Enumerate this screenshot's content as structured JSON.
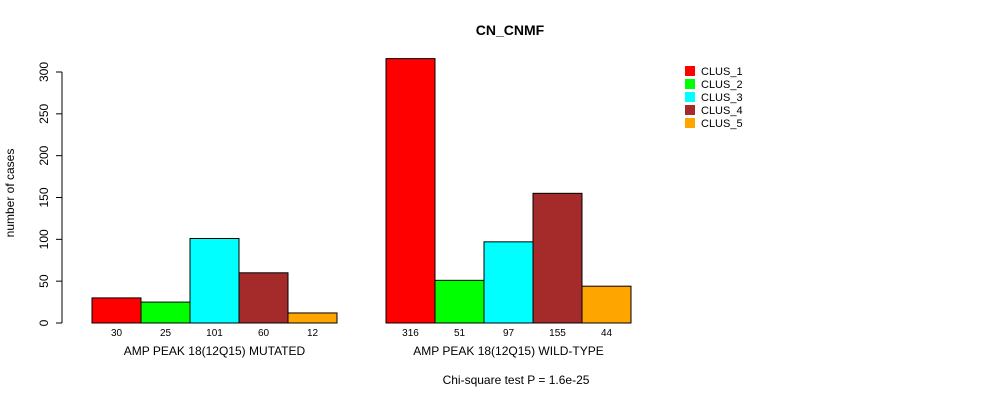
{
  "chart_data": {
    "type": "bar",
    "title": "CN_CNMF",
    "ylabel": "number of cases",
    "xlabel": "",
    "footnote": "Chi-square test P = 1.6e-25",
    "ylim": [
      0,
      300
    ],
    "yticks": [
      0,
      50,
      100,
      150,
      200,
      250,
      300
    ],
    "groups": [
      "AMP PEAK 18(12Q15) MUTATED",
      "AMP PEAK 18(12Q15) WILD-TYPE"
    ],
    "series": [
      {
        "name": "CLUS_1",
        "color": "#ff0000",
        "values": [
          30,
          316
        ]
      },
      {
        "name": "CLUS_2",
        "color": "#00ff00",
        "values": [
          25,
          51
        ]
      },
      {
        "name": "CLUS_3",
        "color": "#00ffff",
        "values": [
          101,
          97
        ]
      },
      {
        "name": "CLUS_4",
        "color": "#a52a2a",
        "values": [
          60,
          155
        ]
      },
      {
        "name": "CLUS_5",
        "color": "#ffa500",
        "values": [
          12,
          44
        ]
      }
    ],
    "bar_labels": [
      [
        "30",
        "25",
        "101",
        "60",
        "12"
      ],
      [
        "316",
        "51",
        "97",
        "155",
        "44"
      ]
    ],
    "legend_position": "top-right",
    "grid": false
  }
}
